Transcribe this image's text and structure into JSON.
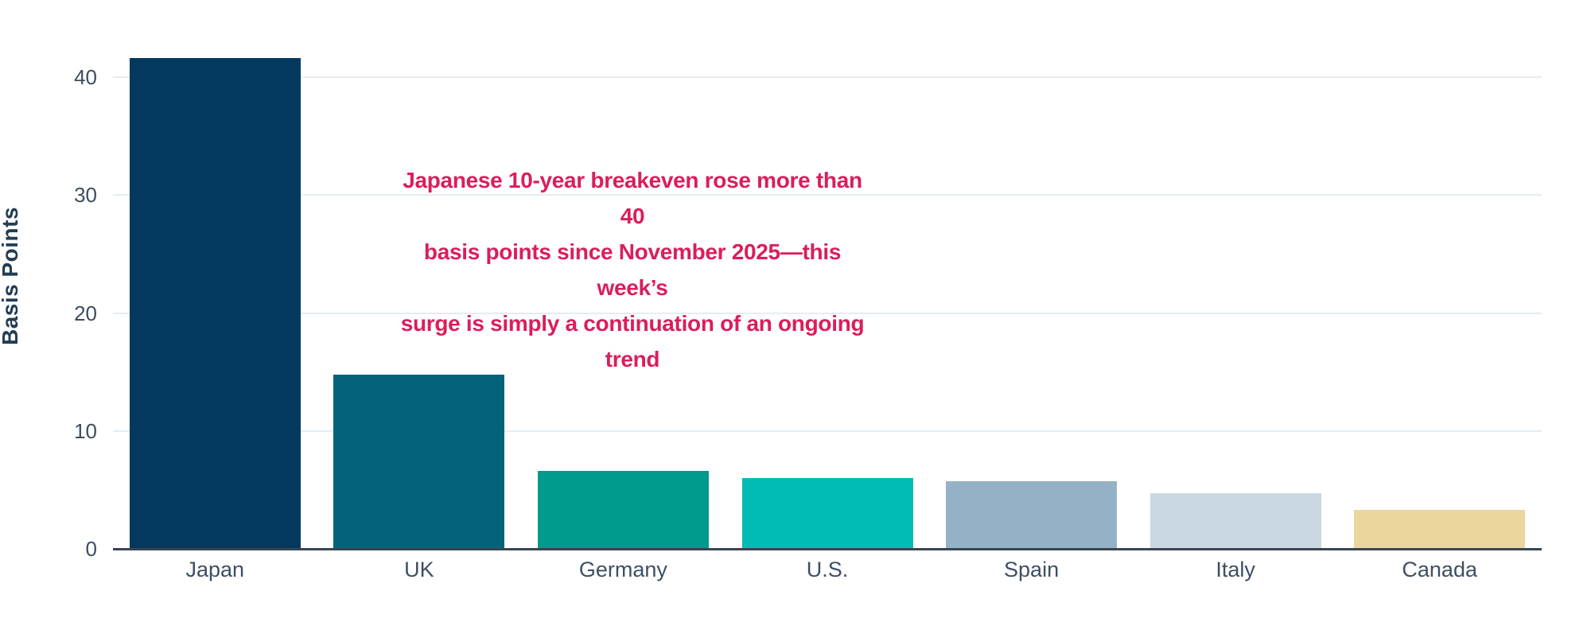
{
  "chart_data": {
    "type": "bar",
    "title": "",
    "xlabel": "",
    "ylabel": "Basis Points",
    "categories": [
      "Japan",
      "UK",
      "Germany",
      "U.S.",
      "Spain",
      "Italy",
      "Canada"
    ],
    "values": [
      41.6,
      14.8,
      6.6,
      6.0,
      5.7,
      4.7,
      3.3
    ],
    "bar_colors": [
      "#04395e",
      "#02637a",
      "#009b8c",
      "#00bcb4",
      "#94b2c5",
      "#c9d8e2",
      "#ebd69f"
    ],
    "yticks": [
      0,
      10,
      20,
      30,
      40
    ],
    "ylim": [
      0,
      42
    ],
    "grid": "horizontal",
    "legend": "none",
    "annotation": {
      "text": "Japanese 10-year breakeven rose more than 40\nbasis points since November 2025—this week’s\nsurge is simply a continuation of an ongoing trend",
      "color": "#da1e5a"
    },
    "style_colors": {
      "gridline": "#e6ecf1",
      "axis_line": "#3a4550",
      "tick_text": "#3d4d5c",
      "category_text": "#3d4f63",
      "ylabel_text": "#233d54",
      "background": "#ffffff"
    }
  }
}
